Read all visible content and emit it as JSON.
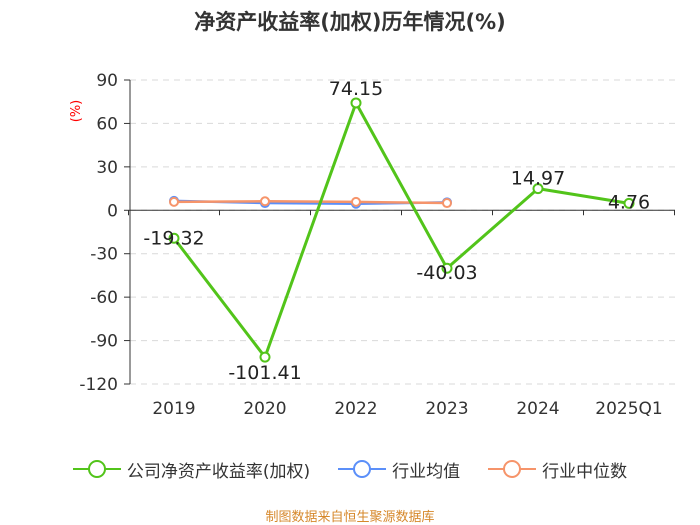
{
  "chart_data": {
    "type": "line",
    "title": "净资产收益率(加权)历年情况(%)",
    "ylabel": "(%)",
    "categories": [
      "2019",
      "2020",
      "2022",
      "2023",
      "2024",
      "2025Q1"
    ],
    "ylim": [
      -120,
      90
    ],
    "yticks": [
      90,
      60,
      30,
      0,
      -30,
      -60,
      -90,
      -120
    ],
    "ytick_labels": [
      "90",
      "60",
      "30",
      "0",
      "-30",
      "-60",
      "-90",
      "-120"
    ],
    "grid": true,
    "legend_position": "bottom",
    "series": [
      {
        "name": "公司净资产收益率(加权)",
        "color": "#52c41a",
        "values": [
          -19.32,
          -101.41,
          74.15,
          -40.03,
          14.97,
          4.76
        ],
        "labels": [
          "-19.32",
          "-101.41",
          "74.15",
          "-40.03",
          "14.97",
          "4.76"
        ]
      },
      {
        "name": "行业均值",
        "color": "#5b8ff9",
        "values": [
          6.5,
          5.0,
          4.5,
          5.5,
          null,
          null
        ]
      },
      {
        "name": "行业中位数",
        "color": "#f6946a",
        "values": [
          5.8,
          6.2,
          5.8,
          5.0,
          null,
          null
        ]
      }
    ]
  },
  "source": "制图数据来自恒生聚源数据库"
}
